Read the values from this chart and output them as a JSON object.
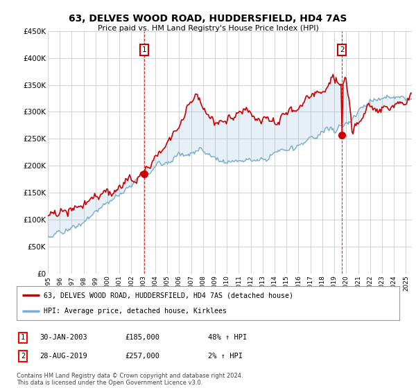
{
  "title": "63, DELVES WOOD ROAD, HUDDERSFIELD, HD4 7AS",
  "subtitle": "Price paid vs. HM Land Registry's House Price Index (HPI)",
  "ylabel_ticks": [
    "£0",
    "£50K",
    "£100K",
    "£150K",
    "£200K",
    "£250K",
    "£300K",
    "£350K",
    "£400K",
    "£450K"
  ],
  "ylim": [
    0,
    450000
  ],
  "xlim_start": 1995.0,
  "xlim_end": 2025.5,
  "legend_line1": "63, DELVES WOOD ROAD, HUDDERSFIELD, HD4 7AS (detached house)",
  "legend_line2": "HPI: Average price, detached house, Kirklees",
  "sale1_label": "1",
  "sale1_date": "30-JAN-2003",
  "sale1_price": "£185,000",
  "sale1_pct": "48% ↑ HPI",
  "sale2_label": "2",
  "sale2_date": "28-AUG-2019",
  "sale2_price": "£257,000",
  "sale2_pct": "2% ↑ HPI",
  "footer": "Contains HM Land Registry data © Crown copyright and database right 2024.\nThis data is licensed under the Open Government Licence v3.0.",
  "line_color_red": "#cc0000",
  "line_color_blue": "#7aadcf",
  "sale_marker_color": "#cc0000",
  "background_color": "#ffffff",
  "grid_color": "#cccccc",
  "sale1_year": 2003.08,
  "sale2_year": 2019.65,
  "sale1_price_val": 185000,
  "sale2_price_val": 257000
}
